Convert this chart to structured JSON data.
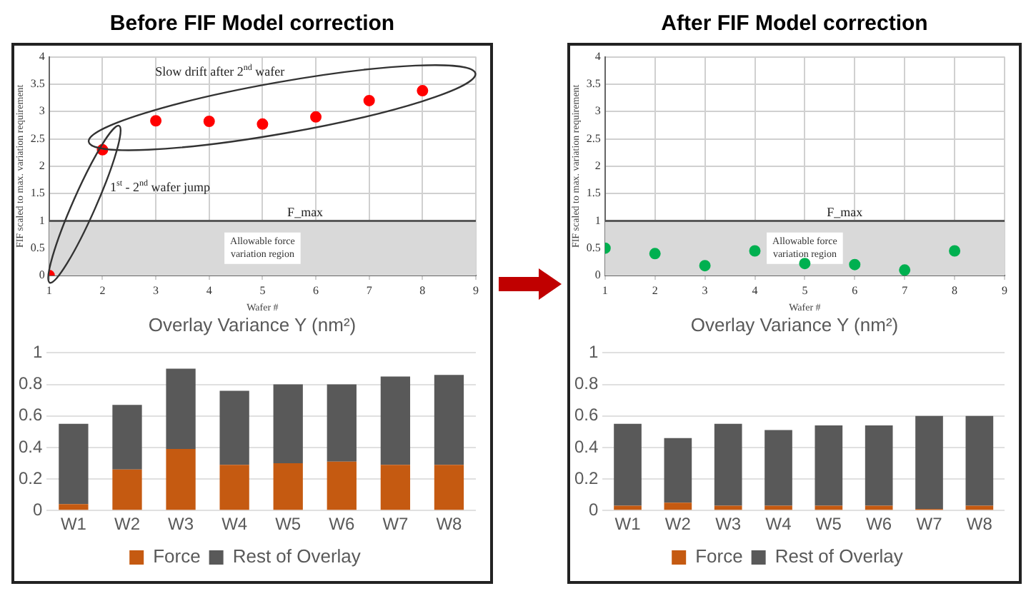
{
  "chart_data": [
    {
      "type": "scatter",
      "title": "Before FIF Model correction",
      "xlabel": "Wafer #",
      "ylabel": "FIF scaled to max. variation requirement",
      "x": [
        1,
        2,
        3,
        4,
        5,
        6,
        7,
        8
      ],
      "values": [
        0,
        2.3,
        2.83,
        2.82,
        2.77,
        2.9,
        3.2,
        3.38
      ],
      "color": "#ff0000",
      "marker": "circle",
      "xlim": [
        1,
        9
      ],
      "xticks": [
        1,
        2,
        3,
        4,
        5,
        6,
        7,
        8,
        9
      ],
      "ylim": [
        0,
        4
      ],
      "yticks": [
        0,
        0.5,
        1,
        1.5,
        2,
        2.5,
        3,
        3.5,
        4
      ],
      "grid": true,
      "annotations": [
        "Slow drift after 2$^{nd}$ wafer",
        "1$^{st}$ - 2$^{nd}$ wafer jump"
      ],
      "ref_lines": [
        {
          "axis": "y",
          "value": 1,
          "label": "F_max",
          "color": "#595959"
        }
      ],
      "bands": [
        {
          "axis": "y",
          "from": 0,
          "to": 1,
          "label": "Allowable force variation region",
          "color": "#d9d9d9"
        }
      ]
    },
    {
      "type": "bar",
      "title": "Overlay Variance Y (nm²)",
      "categories": [
        "W1",
        "W2",
        "W3",
        "W4",
        "W5",
        "W6",
        "W7",
        "W8"
      ],
      "stacked": true,
      "series": [
        {
          "name": "Force",
          "color": "#c55a11",
          "values": [
            0.04,
            0.26,
            0.39,
            0.29,
            0.3,
            0.31,
            0.29,
            0.29
          ]
        },
        {
          "name": "Rest of Overlay",
          "color": "#595959",
          "values": [
            0.51,
            0.41,
            0.51,
            0.47,
            0.5,
            0.49,
            0.56,
            0.57
          ]
        }
      ],
      "ylim": [
        0,
        1
      ],
      "yticks": [
        0,
        0.2,
        0.4,
        0.6,
        0.8,
        1
      ],
      "grid": "y",
      "legend": "bottom"
    },
    {
      "type": "scatter",
      "title": "After FIF Model correction",
      "xlabel": "Wafer #",
      "ylabel": "FIF scaled to max. variation requirement",
      "x": [
        1,
        2,
        3,
        4,
        5,
        6,
        7,
        8
      ],
      "values": [
        0.5,
        0.4,
        0.18,
        0.45,
        0.22,
        0.2,
        0.1,
        0.45
      ],
      "color": "#00b050",
      "marker": "circle",
      "xlim": [
        1,
        9
      ],
      "xticks": [
        1,
        2,
        3,
        4,
        5,
        6,
        7,
        8,
        9
      ],
      "ylim": [
        0,
        4
      ],
      "yticks": [
        0,
        0.5,
        1,
        1.5,
        2,
        2.5,
        3,
        3.5,
        4
      ],
      "grid": true,
      "ref_lines": [
        {
          "axis": "y",
          "value": 1,
          "label": "F_max",
          "color": "#595959"
        }
      ],
      "bands": [
        {
          "axis": "y",
          "from": 0,
          "to": 1,
          "label": "Allowable force variation region",
          "color": "#d9d9d9"
        }
      ]
    },
    {
      "type": "bar",
      "title": "Overlay Variance Y (nm²)",
      "categories": [
        "W1",
        "W2",
        "W3",
        "W4",
        "W5",
        "W6",
        "W7",
        "W8"
      ],
      "stacked": true,
      "series": [
        {
          "name": "Force",
          "color": "#c55a11",
          "values": [
            0.03,
            0.05,
            0.03,
            0.03,
            0.03,
            0.03,
            0.01,
            0.03
          ]
        },
        {
          "name": "Rest of Overlay",
          "color": "#595959",
          "values": [
            0.52,
            0.41,
            0.52,
            0.48,
            0.51,
            0.51,
            0.59,
            0.57
          ]
        }
      ],
      "ylim": [
        0,
        1
      ],
      "yticks": [
        0,
        0.2,
        0.4,
        0.6,
        0.8,
        1
      ],
      "grid": "y",
      "legend": "bottom"
    }
  ]
}
